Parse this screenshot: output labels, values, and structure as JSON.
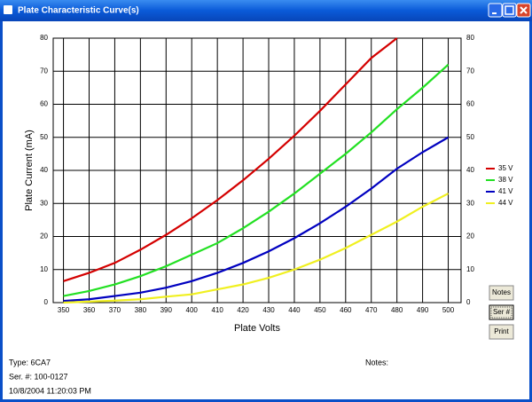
{
  "window": {
    "title": "Plate Characteristic Curve(s)"
  },
  "chart_data": {
    "type": "line",
    "x_label": "Plate Volts",
    "y_label": "Plate Current (mA)",
    "x": [
      350,
      360,
      370,
      380,
      390,
      400,
      410,
      420,
      430,
      440,
      450,
      460,
      470,
      480,
      490,
      500
    ],
    "series": [
      {
        "name": "35 V",
        "color": "#d40000",
        "values": [
          6.5,
          9,
          12,
          16,
          20.5,
          25.5,
          31,
          37,
          43.5,
          50.5,
          58,
          66,
          74,
          80,
          null,
          null
        ]
      },
      {
        "name": "38 V",
        "color": "#22e022",
        "values": [
          2,
          3.5,
          5.5,
          8,
          11,
          14.5,
          18,
          22.5,
          27.5,
          33,
          39,
          45,
          51.5,
          58.5,
          65,
          72
        ]
      },
      {
        "name": "41 V",
        "color": "#0000c0",
        "values": [
          0.5,
          1,
          2,
          3,
          4.5,
          6.5,
          9,
          12,
          15.5,
          19.5,
          24,
          29,
          34.5,
          40.5,
          45.5,
          50
        ]
      },
      {
        "name": "44 V",
        "color": "#f0f020",
        "values": [
          0,
          0.3,
          0.6,
          1,
          1.8,
          2.5,
          4,
          5.5,
          7.5,
          10,
          13,
          16.5,
          20.5,
          24.5,
          29,
          33
        ]
      }
    ],
    "xlim": [
      346,
      505
    ],
    "xticks": [
      350,
      360,
      370,
      380,
      390,
      400,
      410,
      420,
      430,
      440,
      450,
      460,
      470,
      480,
      490,
      500
    ],
    "ylim": [
      0,
      80
    ],
    "yticks": [
      0,
      10,
      20,
      30,
      40,
      50,
      60,
      70,
      80
    ],
    "grid": true,
    "legend": "right"
  },
  "buttons": [
    "Notes",
    "Ser #",
    "Print"
  ],
  "info": {
    "type": "Type: 6CA7",
    "serial": "Ser. #: 100-0127",
    "timestamp": "10/8/2004 11:20:03 PM",
    "notes": "Notes:"
  }
}
